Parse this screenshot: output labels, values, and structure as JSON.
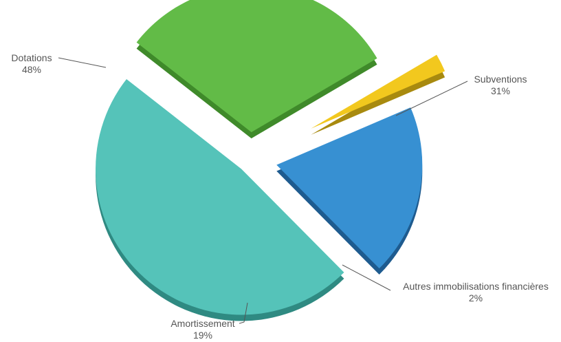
{
  "chart_data": {
    "type": "pie",
    "title": "",
    "slices": [
      {
        "name": "Subventions",
        "value": 31,
        "pct_label": "31%",
        "color": "#62bb47",
        "side": "#3f8a2a"
      },
      {
        "name": "Autres immobilisations financières",
        "value": 2,
        "pct_label": "2%",
        "color": "#f2c81e",
        "side": "#a88a0f"
      },
      {
        "name": "Amortissement",
        "value": 19,
        "pct_label": "19%",
        "color": "#3790d2",
        "side": "#1e5b8f"
      },
      {
        "name": "Dotations",
        "value": 48,
        "pct_label": "48%",
        "color": "#55c3b9",
        "side": "#2f8a82"
      }
    ],
    "style": "3D exploded pie"
  }
}
